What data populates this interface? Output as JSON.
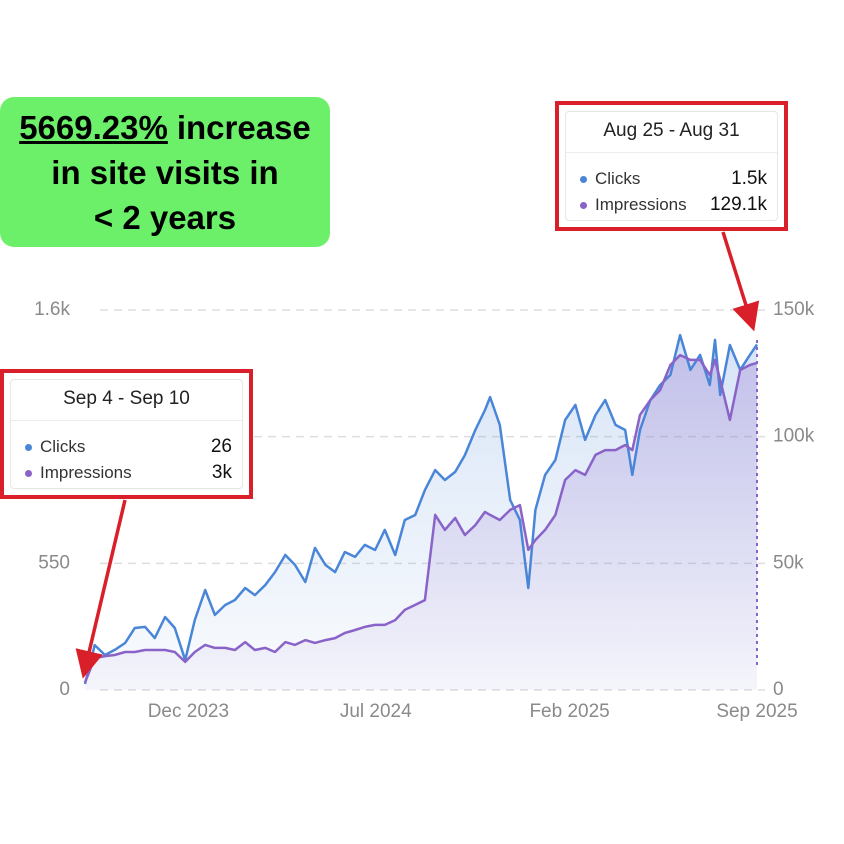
{
  "chart_data": {
    "type": "line",
    "headline": {
      "highlight": "5669.23%",
      "lines": [
        "increase",
        "in site visits in",
        "< 2 years"
      ]
    },
    "x": [
      0,
      1.5,
      3.1,
      4.6,
      6.2,
      7.7,
      9.3,
      10.8,
      12.4,
      13.9,
      15.5,
      17,
      18.6,
      20.1,
      21.7,
      23.2,
      24.8,
      26.3,
      27.9,
      29.4,
      31,
      32.5,
      34.1,
      35.6,
      37.2,
      38.7,
      40.2,
      41.8,
      43.3,
      44.9,
      46.4,
      48,
      49.5,
      51.1,
      52.6,
      54.2,
      55.7,
      57.3,
      58.8,
      60.4,
      61.9,
      62.7,
      64.2,
      65.8,
      67.3,
      68.6,
      69.7,
      71.2,
      72.8,
      74.3,
      75.9,
      77.4,
      79,
      80.5,
      82.1,
      83.6,
      84.7,
      85.9,
      87.5,
      89,
      90.6,
      92.1,
      93.7,
      95.2,
      96.7,
      97.5,
      98.3,
      99.8,
      101.4,
      102.9,
      104
    ],
    "series": [
      {
        "name": "Clicks",
        "color": "#4a86d8",
        "axis": "y",
        "values": [
          26,
          195,
          152,
          174,
          204,
          269,
          274,
          226,
          317,
          269,
          130,
          304,
          434,
          326,
          369,
          391,
          443,
          412,
          456,
          512,
          586,
          543,
          469,
          617,
          543,
          512,
          599,
          578,
          630,
          608,
          695,
          586,
          738,
          760,
          868,
          955,
          912,
          947,
          1020,
          1129,
          1216,
          1272,
          1151,
          825,
          738,
          443,
          782,
          934,
          999,
          1172,
          1238,
          1086,
          1194,
          1259,
          1151,
          1129,
          934,
          1129,
          1259,
          1324,
          1368,
          1541,
          1390,
          1455,
          1324,
          1520,
          1281,
          1498,
          1390,
          1455,
          1500
        ]
      },
      {
        "name": "Impressions",
        "color": "#8a63c8",
        "axis": "y2",
        "values": [
          3000,
          12600,
          13400,
          13800,
          15000,
          15000,
          15800,
          15800,
          15800,
          15000,
          11100,
          15000,
          17800,
          16600,
          16600,
          15800,
          18900,
          15800,
          16600,
          15000,
          18900,
          17800,
          19700,
          18600,
          19700,
          20500,
          22500,
          23700,
          24900,
          25700,
          25700,
          27600,
          31600,
          33600,
          35500,
          69100,
          63200,
          67900,
          61200,
          65100,
          70300,
          69100,
          67100,
          71100,
          73000,
          55300,
          59200,
          63200,
          69100,
          82900,
          86800,
          84900,
          92800,
          94700,
          94700,
          96700,
          94700,
          108600,
          114500,
          118400,
          128300,
          132200,
          130300,
          130300,
          124300,
          130300,
          122400,
          106600,
          126300,
          128300,
          129100
        ]
      }
    ],
    "xlim": [
      0,
      104
    ],
    "xticks": [
      {
        "value": 16,
        "label": "Dec 2023"
      },
      {
        "value": 45,
        "label": "Jul 2024"
      },
      {
        "value": 75,
        "label": "Feb 2025"
      },
      {
        "value": 104,
        "label": "Sep 2025"
      }
    ],
    "ylim": [
      0,
      1650
    ],
    "yticks": [
      0,
      550,
      {
        "value": 1650,
        "label": "1.6k"
      }
    ],
    "y2lim": [
      0,
      150000
    ],
    "y2ticks": [
      0,
      {
        "value": 50000,
        "label": "50k"
      },
      {
        "value": 100000,
        "label": "100k"
      },
      {
        "value": 150000,
        "label": "150k"
      }
    ],
    "grid": true,
    "tooltips": [
      {
        "title": "Aug 25 - Aug 31",
        "values": [
          "1.5k",
          "129.1k"
        ]
      },
      {
        "title": "Sep 4 - Sep 10",
        "values": [
          "26",
          "3k"
        ]
      }
    ]
  }
}
